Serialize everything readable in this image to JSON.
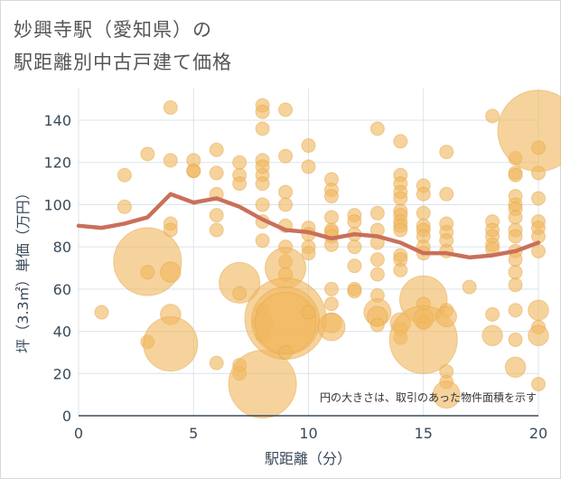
{
  "title": {
    "line1": "妙興寺駅（愛知県）の",
    "line2": "駅距離別中古戸建て価格"
  },
  "note": "円の大きさは、取引のあった物件面積を示す",
  "colors": {
    "bubble": "#f0b860",
    "trend": "#c9705a",
    "grid": "#dce3ea",
    "axis": "#3a4a5a"
  },
  "chart_data": {
    "type": "scatter",
    "xlabel": "駅距離（分）",
    "ylabel": "坪（3.3㎡）単価（万円）",
    "xlim": [
      0,
      20
    ],
    "ylim": [
      0,
      155
    ],
    "xticks": [
      0,
      5,
      10,
      15,
      20
    ],
    "yticks": [
      0,
      20,
      40,
      60,
      80,
      100,
      120,
      140
    ],
    "grid": true,
    "bubbles": [
      {
        "x": 1,
        "y": 49,
        "r": 1
      },
      {
        "x": 2,
        "y": 114,
        "r": 1
      },
      {
        "x": 2,
        "y": 99,
        "r": 1
      },
      {
        "x": 3,
        "y": 124,
        "r": 1
      },
      {
        "x": 3,
        "y": 73,
        "r": 5
      },
      {
        "x": 3,
        "y": 68,
        "r": 1
      },
      {
        "x": 3,
        "y": 35,
        "r": 1
      },
      {
        "x": 4,
        "y": 146,
        "r": 1
      },
      {
        "x": 4,
        "y": 121,
        "r": 1
      },
      {
        "x": 4,
        "y": 91,
        "r": 1
      },
      {
        "x": 4,
        "y": 88,
        "r": 1
      },
      {
        "x": 4,
        "y": 68,
        "r": 1.5
      },
      {
        "x": 4,
        "y": 48,
        "r": 1.5
      },
      {
        "x": 4,
        "y": 34,
        "r": 4
      },
      {
        "x": 5,
        "y": 121,
        "r": 1
      },
      {
        "x": 5,
        "y": 116,
        "r": 1
      },
      {
        "x": 5,
        "y": 116,
        "r": 1
      },
      {
        "x": 6,
        "y": 126,
        "r": 1
      },
      {
        "x": 6,
        "y": 115,
        "r": 1
      },
      {
        "x": 6,
        "y": 105,
        "r": 1
      },
      {
        "x": 6,
        "y": 95,
        "r": 1
      },
      {
        "x": 6,
        "y": 88,
        "r": 1
      },
      {
        "x": 6,
        "y": 25,
        "r": 1
      },
      {
        "x": 7,
        "y": 120,
        "r": 1
      },
      {
        "x": 7,
        "y": 114,
        "r": 1
      },
      {
        "x": 7,
        "y": 110,
        "r": 1
      },
      {
        "x": 7,
        "y": 63,
        "r": 3
      },
      {
        "x": 7,
        "y": 58,
        "r": 1
      },
      {
        "x": 7,
        "y": 24,
        "r": 1
      },
      {
        "x": 7,
        "y": 20,
        "r": 1
      },
      {
        "x": 8,
        "y": 147,
        "r": 1
      },
      {
        "x": 8,
        "y": 144,
        "r": 1
      },
      {
        "x": 8,
        "y": 136,
        "r": 1
      },
      {
        "x": 8,
        "y": 121,
        "r": 1
      },
      {
        "x": 8,
        "y": 118,
        "r": 1
      },
      {
        "x": 8,
        "y": 114,
        "r": 1
      },
      {
        "x": 8,
        "y": 110,
        "r": 1
      },
      {
        "x": 8,
        "y": 100,
        "r": 1
      },
      {
        "x": 8,
        "y": 92,
        "r": 1
      },
      {
        "x": 8,
        "y": 83,
        "r": 1
      },
      {
        "x": 8,
        "y": 50,
        "r": 1
      },
      {
        "x": 8,
        "y": 44,
        "r": 1.5
      },
      {
        "x": 8,
        "y": 38,
        "r": 1
      },
      {
        "x": 8,
        "y": 15,
        "r": 5
      },
      {
        "x": 9,
        "y": 145,
        "r": 1
      },
      {
        "x": 9,
        "y": 123,
        "r": 1
      },
      {
        "x": 9,
        "y": 106,
        "r": 1
      },
      {
        "x": 9,
        "y": 100,
        "r": 1
      },
      {
        "x": 9,
        "y": 90,
        "r": 1
      },
      {
        "x": 9,
        "y": 80,
        "r": 1
      },
      {
        "x": 9,
        "y": 73,
        "r": 1
      },
      {
        "x": 9,
        "y": 70,
        "r": 3
      },
      {
        "x": 9,
        "y": 67,
        "r": 1
      },
      {
        "x": 9,
        "y": 46,
        "r": 6
      },
      {
        "x": 9,
        "y": 45,
        "r": 5
      },
      {
        "x": 9,
        "y": 44,
        "r": 4.5
      },
      {
        "x": 9,
        "y": 30,
        "r": 1
      },
      {
        "x": 10,
        "y": 128,
        "r": 1
      },
      {
        "x": 10,
        "y": 118,
        "r": 1
      },
      {
        "x": 10,
        "y": 89,
        "r": 1
      },
      {
        "x": 10,
        "y": 86,
        "r": 1
      },
      {
        "x": 10,
        "y": 80,
        "r": 1
      },
      {
        "x": 10,
        "y": 77,
        "r": 1
      },
      {
        "x": 10,
        "y": 49,
        "r": 1
      },
      {
        "x": 11,
        "y": 112,
        "r": 1
      },
      {
        "x": 11,
        "y": 107,
        "r": 1
      },
      {
        "x": 11,
        "y": 104,
        "r": 1
      },
      {
        "x": 11,
        "y": 94,
        "r": 1
      },
      {
        "x": 11,
        "y": 88,
        "r": 1
      },
      {
        "x": 11,
        "y": 87,
        "r": 1
      },
      {
        "x": 11,
        "y": 85,
        "r": 1
      },
      {
        "x": 11,
        "y": 81,
        "r": 1
      },
      {
        "x": 11,
        "y": 60,
        "r": 1
      },
      {
        "x": 11,
        "y": 53,
        "r": 1
      },
      {
        "x": 11,
        "y": 44,
        "r": 1.5
      },
      {
        "x": 11,
        "y": 42,
        "r": 2
      },
      {
        "x": 12,
        "y": 95,
        "r": 1
      },
      {
        "x": 12,
        "y": 92,
        "r": 1
      },
      {
        "x": 12,
        "y": 86,
        "r": 1
      },
      {
        "x": 12,
        "y": 80,
        "r": 1
      },
      {
        "x": 12,
        "y": 71,
        "r": 1
      },
      {
        "x": 12,
        "y": 60,
        "r": 1
      },
      {
        "x": 12,
        "y": 59,
        "r": 1
      },
      {
        "x": 13,
        "y": 136,
        "r": 1
      },
      {
        "x": 13,
        "y": 96,
        "r": 1
      },
      {
        "x": 13,
        "y": 88,
        "r": 1
      },
      {
        "x": 13,
        "y": 82,
        "r": 1
      },
      {
        "x": 13,
        "y": 74,
        "r": 1
      },
      {
        "x": 13,
        "y": 67,
        "r": 1
      },
      {
        "x": 13,
        "y": 57,
        "r": 1
      },
      {
        "x": 13,
        "y": 49,
        "r": 2
      },
      {
        "x": 13,
        "y": 47,
        "r": 1.5
      },
      {
        "x": 13,
        "y": 43,
        "r": 1
      },
      {
        "x": 14,
        "y": 130,
        "r": 1
      },
      {
        "x": 14,
        "y": 114,
        "r": 1
      },
      {
        "x": 14,
        "y": 110,
        "r": 1
      },
      {
        "x": 14,
        "y": 106,
        "r": 1
      },
      {
        "x": 14,
        "y": 103,
        "r": 1
      },
      {
        "x": 14,
        "y": 97,
        "r": 1
      },
      {
        "x": 14,
        "y": 95,
        "r": 1
      },
      {
        "x": 14,
        "y": 92,
        "r": 1
      },
      {
        "x": 14,
        "y": 90,
        "r": 1
      },
      {
        "x": 14,
        "y": 88,
        "r": 1
      },
      {
        "x": 14,
        "y": 76,
        "r": 1
      },
      {
        "x": 14,
        "y": 74,
        "r": 1
      },
      {
        "x": 14,
        "y": 69,
        "r": 1
      },
      {
        "x": 14,
        "y": 44,
        "r": 1.5
      },
      {
        "x": 14,
        "y": 41,
        "r": 1
      },
      {
        "x": 14,
        "y": 37,
        "r": 1
      },
      {
        "x": 15,
        "y": 109,
        "r": 1
      },
      {
        "x": 15,
        "y": 105,
        "r": 1
      },
      {
        "x": 15,
        "y": 96,
        "r": 1
      },
      {
        "x": 15,
        "y": 90,
        "r": 1
      },
      {
        "x": 15,
        "y": 88,
        "r": 1
      },
      {
        "x": 15,
        "y": 85,
        "r": 1
      },
      {
        "x": 15,
        "y": 80,
        "r": 1
      },
      {
        "x": 15,
        "y": 77,
        "r": 1
      },
      {
        "x": 15,
        "y": 55,
        "r": 3.5
      },
      {
        "x": 15,
        "y": 53,
        "r": 1
      },
      {
        "x": 15,
        "y": 46,
        "r": 1.5
      },
      {
        "x": 15,
        "y": 44,
        "r": 1
      },
      {
        "x": 15,
        "y": 36,
        "r": 5
      },
      {
        "x": 16,
        "y": 125,
        "r": 1
      },
      {
        "x": 16,
        "y": 105,
        "r": 1
      },
      {
        "x": 16,
        "y": 91,
        "r": 1
      },
      {
        "x": 16,
        "y": 87,
        "r": 1
      },
      {
        "x": 16,
        "y": 83,
        "r": 1
      },
      {
        "x": 16,
        "y": 78,
        "r": 1
      },
      {
        "x": 16,
        "y": 50,
        "r": 1
      },
      {
        "x": 16,
        "y": 47,
        "r": 1.5
      },
      {
        "x": 16,
        "y": 21,
        "r": 1
      },
      {
        "x": 16,
        "y": 16,
        "r": 1
      },
      {
        "x": 16,
        "y": 10,
        "r": 2
      },
      {
        "x": 17,
        "y": 61,
        "r": 1
      },
      {
        "x": 18,
        "y": 142,
        "r": 1
      },
      {
        "x": 18,
        "y": 92,
        "r": 1
      },
      {
        "x": 18,
        "y": 88,
        "r": 1
      },
      {
        "x": 18,
        "y": 85,
        "r": 1
      },
      {
        "x": 18,
        "y": 81,
        "r": 1
      },
      {
        "x": 18,
        "y": 79,
        "r": 1
      },
      {
        "x": 18,
        "y": 48,
        "r": 1
      },
      {
        "x": 18,
        "y": 38,
        "r": 1.5
      },
      {
        "x": 19,
        "y": 122,
        "r": 1
      },
      {
        "x": 19,
        "y": 115,
        "r": 1
      },
      {
        "x": 19,
        "y": 114,
        "r": 1
      },
      {
        "x": 19,
        "y": 104,
        "r": 1
      },
      {
        "x": 19,
        "y": 100,
        "r": 1
      },
      {
        "x": 19,
        "y": 98,
        "r": 1
      },
      {
        "x": 19,
        "y": 94,
        "r": 1
      },
      {
        "x": 19,
        "y": 88,
        "r": 1
      },
      {
        "x": 19,
        "y": 85,
        "r": 1
      },
      {
        "x": 19,
        "y": 78,
        "r": 1
      },
      {
        "x": 19,
        "y": 74,
        "r": 1
      },
      {
        "x": 19,
        "y": 68,
        "r": 1
      },
      {
        "x": 19,
        "y": 62,
        "r": 1
      },
      {
        "x": 19,
        "y": 50,
        "r": 1
      },
      {
        "x": 19,
        "y": 36,
        "r": 1
      },
      {
        "x": 19,
        "y": 23,
        "r": 1.5
      },
      {
        "x": 20,
        "y": 135,
        "r": 6
      },
      {
        "x": 20,
        "y": 127,
        "r": 1
      },
      {
        "x": 20,
        "y": 115,
        "r": 1
      },
      {
        "x": 20,
        "y": 103,
        "r": 1
      },
      {
        "x": 20,
        "y": 92,
        "r": 1
      },
      {
        "x": 20,
        "y": 89,
        "r": 1
      },
      {
        "x": 20,
        "y": 85,
        "r": 1
      },
      {
        "x": 20,
        "y": 78,
        "r": 1
      },
      {
        "x": 20,
        "y": 50,
        "r": 1.5
      },
      {
        "x": 20,
        "y": 42,
        "r": 1
      },
      {
        "x": 20,
        "y": 38,
        "r": 1.5
      },
      {
        "x": 20,
        "y": 15,
        "r": 1
      }
    ],
    "trend": {
      "x": [
        0,
        1,
        2,
        3,
        4,
        5,
        6,
        7,
        8,
        9,
        10,
        11,
        12,
        13,
        14,
        15,
        16,
        17,
        18,
        19,
        20
      ],
      "y": [
        90,
        89,
        91,
        94,
        105,
        101,
        103,
        99,
        93,
        88,
        87,
        84,
        86,
        85,
        82,
        77,
        77,
        75,
        76,
        78,
        82
      ]
    }
  }
}
